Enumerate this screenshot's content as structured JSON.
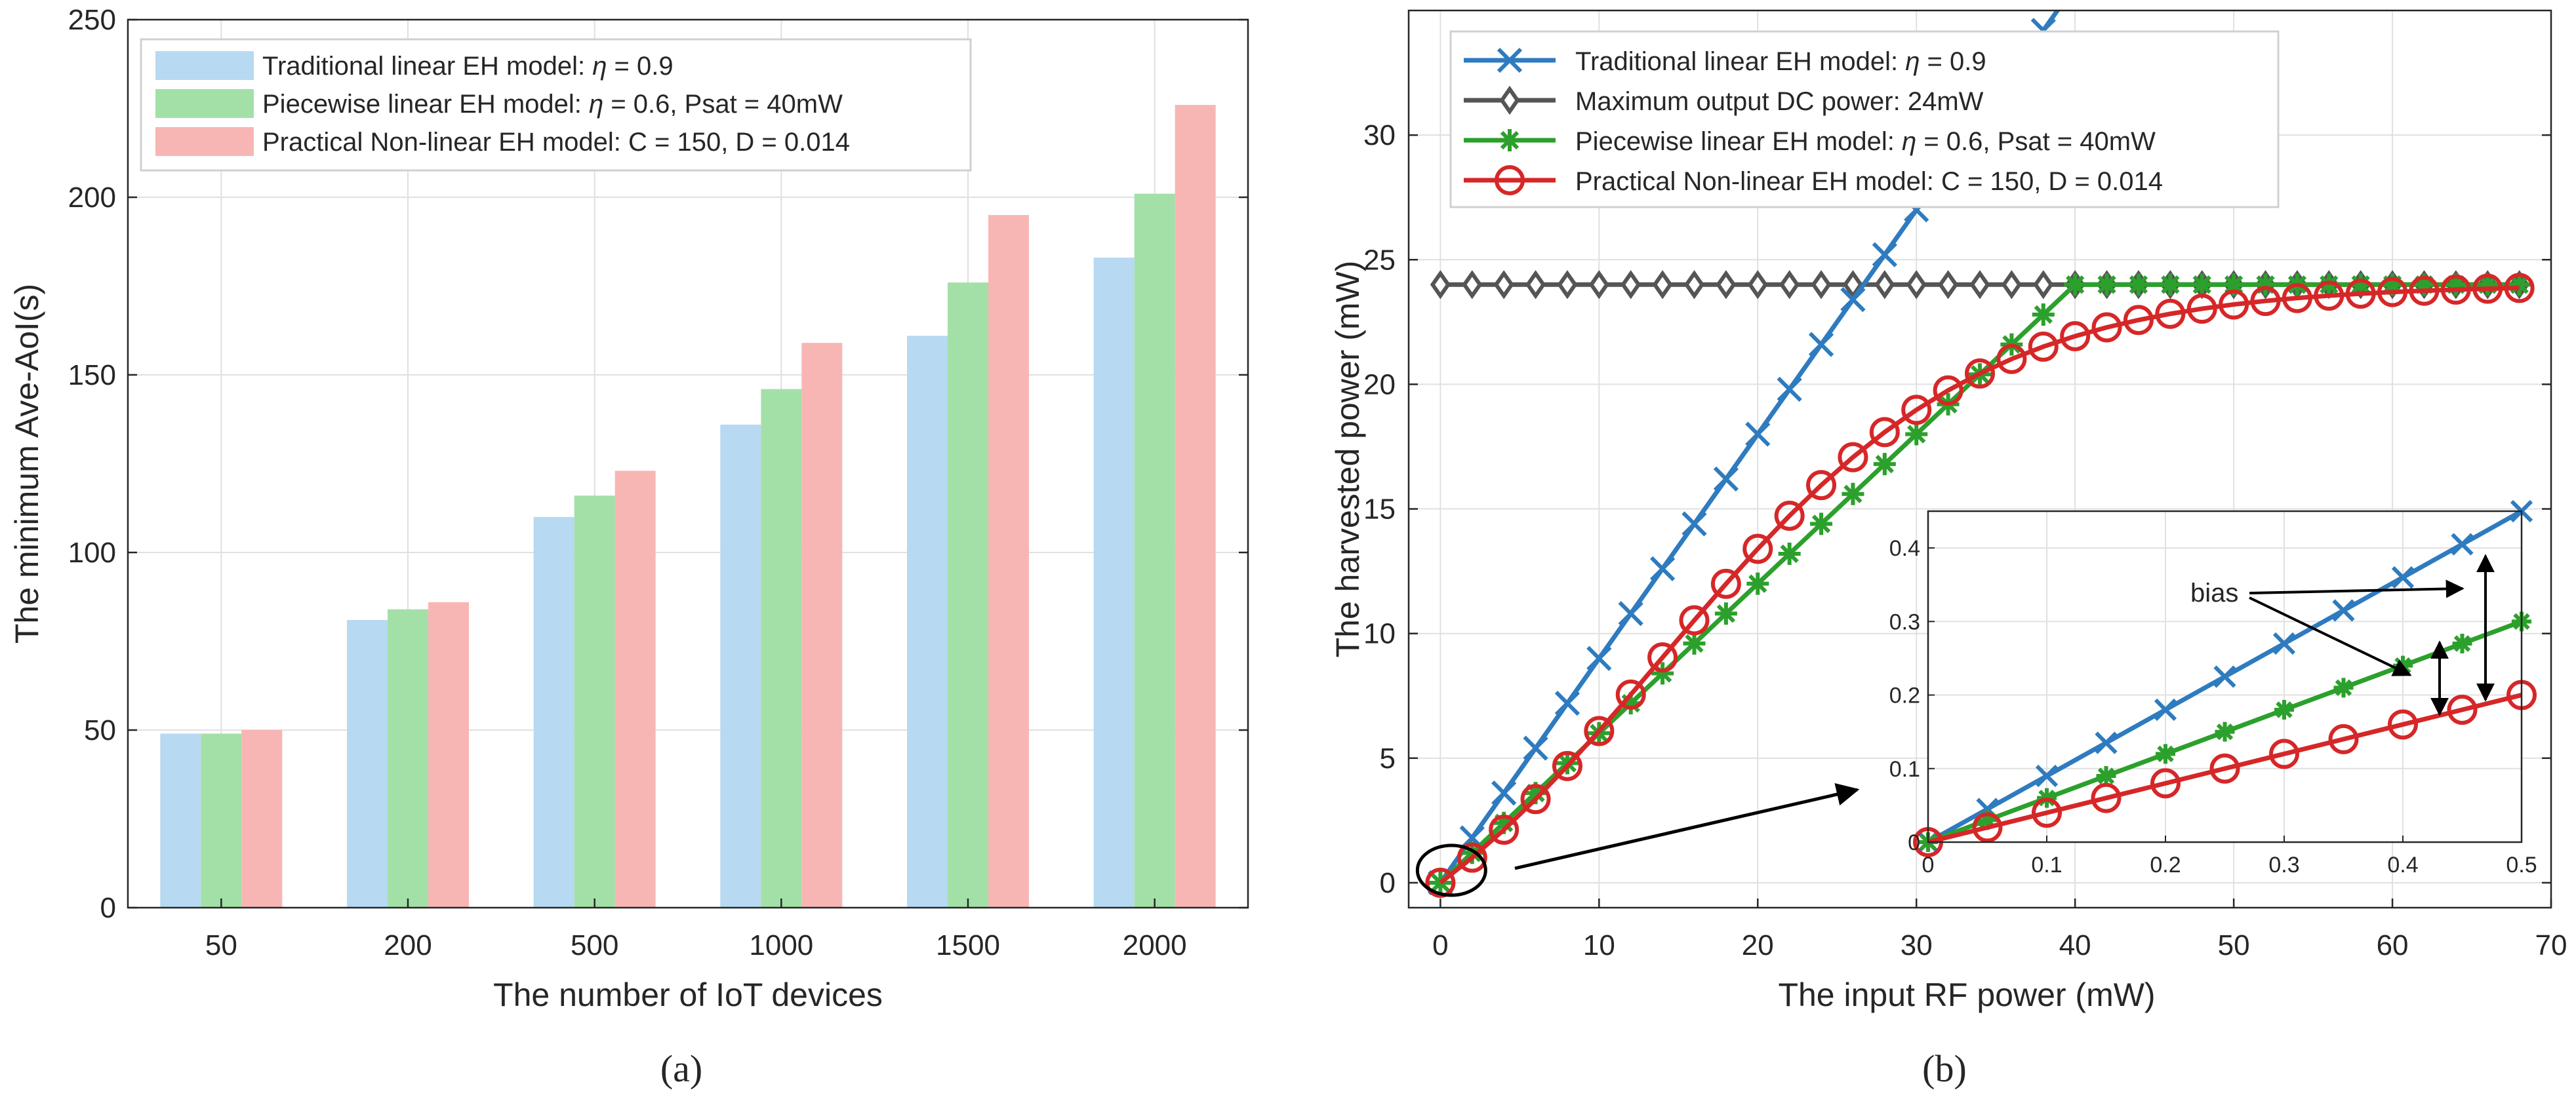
{
  "chart_data": [
    {
      "type": "bar",
      "panel": "a",
      "caption": "(a)",
      "xlabel": "The number of IoT devices",
      "ylabel": "The minimum Ave-AoI(s)",
      "categories": [
        "50",
        "200",
        "500",
        "1000",
        "1500",
        "2000"
      ],
      "ylim": [
        0,
        250
      ],
      "yticks": [
        0,
        50,
        100,
        150,
        200,
        250
      ],
      "grid": true,
      "legend_position": "top-left",
      "series": [
        {
          "name": "Traditional linear EH model: η = 0.9",
          "color": "#b7d9f2",
          "values": [
            49,
            81,
            110,
            136,
            161,
            183
          ]
        },
        {
          "name": "Piecewise linear EH model: η = 0.6, Psat = 40mW",
          "color": "#a3e0a8",
          "values": [
            49,
            84,
            116,
            146,
            176,
            201
          ]
        },
        {
          "name": "Practical Non-linear EH model: C = 150, D = 0.014",
          "color": "#f7b6b4",
          "values": [
            50,
            86,
            123,
            159,
            195,
            226
          ]
        }
      ]
    },
    {
      "type": "line",
      "panel": "b",
      "caption": "(b)",
      "xlabel": "The input RF power (mW)",
      "ylabel": "The harvested power (mW)",
      "xlim": [
        -2,
        70
      ],
      "ylim": [
        -1,
        35
      ],
      "xticks": [
        0,
        10,
        20,
        30,
        40,
        50,
        60,
        70
      ],
      "yticks": [
        0,
        5,
        10,
        15,
        20,
        25,
        30
      ],
      "grid": true,
      "legend_position": "top-left",
      "series": [
        {
          "name": "Traditional linear EH model: η = 0.9",
          "color": "#2e7bbf",
          "marker": "x",
          "model": "linear",
          "eta": 0.9
        },
        {
          "name": "Maximum output DC power: 24mW",
          "color": "#555555",
          "marker": "diamond",
          "model": "constant",
          "value": 24
        },
        {
          "name": "Piecewise linear EH model: η = 0.6, Psat = 40mW",
          "color": "#2ca02c",
          "marker": "asterisk",
          "model": "piecewise",
          "eta": 0.6,
          "sat": 24
        },
        {
          "name": "Practical Non-linear EH model: C = 150, D = 0.014",
          "color": "#d62728",
          "marker": "circle",
          "model": "logistic",
          "C": 150,
          "D": 0.014,
          "sat": 24
        }
      ],
      "x_samples": [
        0,
        2,
        4,
        6,
        8,
        10,
        12,
        14,
        16,
        18,
        20,
        22,
        24,
        26,
        28,
        30,
        32,
        34,
        36,
        38,
        40,
        42,
        44,
        46,
        48,
        50,
        52,
        54,
        56,
        58,
        60,
        62,
        64,
        66,
        68
      ],
      "inset": {
        "xlim": [
          0,
          0.5
        ],
        "ylim": [
          0,
          0.45
        ],
        "xticks": [
          0,
          0.1,
          0.2,
          0.3,
          0.4,
          0.5
        ],
        "yticks": [
          0,
          0.1,
          0.2,
          0.3,
          0.4
        ],
        "x_samples": [
          0,
          0.05,
          0.1,
          0.15,
          0.2,
          0.25,
          0.3,
          0.35,
          0.4,
          0.45,
          0.5
        ],
        "annotation": "bias"
      }
    }
  ]
}
